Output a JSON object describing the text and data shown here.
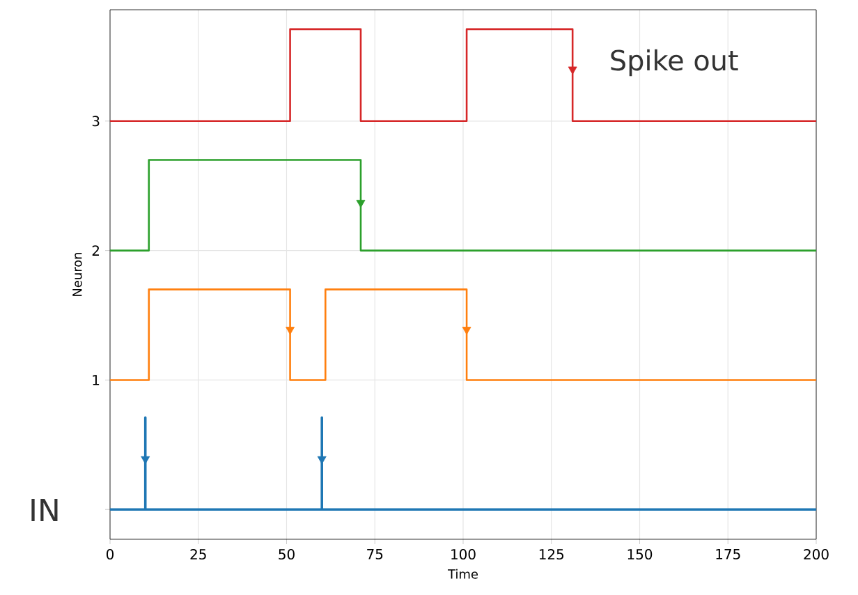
{
  "chart_data": {
    "type": "step",
    "xlabel": "Time",
    "ylabel": "Neuron",
    "xlim": [
      0,
      200
    ],
    "ylim": [
      -0.23,
      3.86
    ],
    "xticks": [
      0,
      25,
      50,
      75,
      100,
      125,
      150,
      175,
      200
    ],
    "yticks": [
      {
        "value": 0,
        "label": null
      },
      1,
      2,
      3
    ],
    "grid": true,
    "marker": "none",
    "line_style": "solid",
    "series": [
      {
        "type": "line",
        "color": "#1f77b4",
        "x": [
          0,
          10,
          10,
          10,
          60,
          60,
          60,
          200
        ],
        "values": [
          0,
          0,
          0.71,
          0,
          0,
          0.71,
          0,
          0
        ]
      },
      {
        "color": "#ff7f0e",
        "x": [
          0,
          11,
          51,
          61,
          101,
          200
        ],
        "values": [
          1,
          1.7,
          1,
          1.7,
          1,
          1
        ]
      },
      {
        "color": "#2ca02c",
        "x": [
          0,
          11,
          71,
          200
        ],
        "values": [
          2,
          2.7,
          2,
          2
        ]
      },
      {
        "color": "#d62728",
        "x": [
          0,
          51,
          71,
          101,
          131,
          200
        ],
        "values": [
          3,
          3.71,
          3,
          3.71,
          3,
          3
        ]
      },
      {
        "type": "scatter",
        "color": "#1f77b4",
        "marker": "triangle",
        "x": [
          10,
          60
        ],
        "values": [
          0.39,
          0.39
        ]
      },
      {
        "type": "scatter",
        "color": "#ff7f0e",
        "marker": "triangle",
        "x": [
          51,
          101
        ],
        "values": [
          1.39,
          1.39
        ]
      },
      {
        "type": "scatter",
        "color": "#2ca02c",
        "marker": "triangle",
        "x": [
          71
        ],
        "values": [
          2.37
        ]
      },
      {
        "type": "scatter",
        "color": "#d62728",
        "marker": "triangle",
        "x": [
          131
        ],
        "values": [
          3.4
        ]
      }
    ],
    "annotations": [
      "Spike out",
      "IN"
    ]
  }
}
